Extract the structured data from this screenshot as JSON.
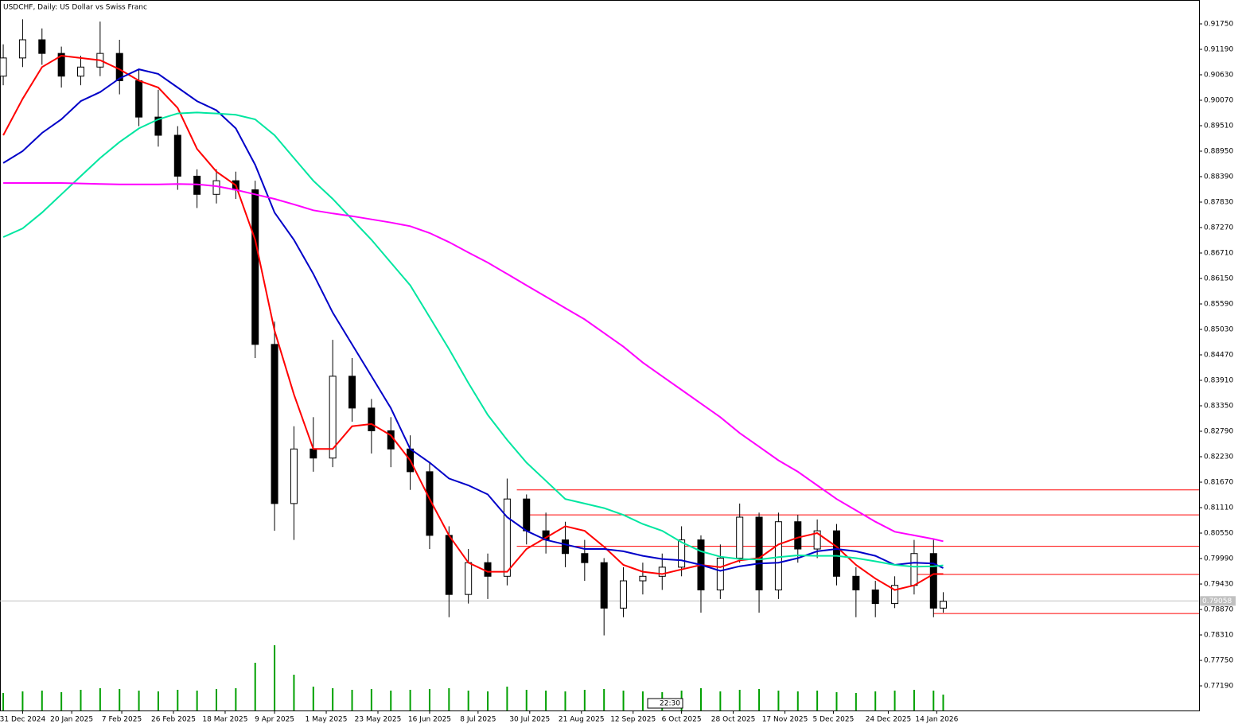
{
  "chart_data": {
    "type": "candlestick",
    "title": "USDCHF, Daily:  US Dollar vs Swiss Franc",
    "x": [
      0,
      6,
      12,
      18,
      24,
      30,
      36,
      42,
      48,
      54,
      60,
      66,
      72,
      78,
      84,
      90,
      96,
      102,
      108,
      114,
      120,
      126,
      132,
      138,
      144,
      150,
      156,
      162,
      168,
      174,
      180,
      186,
      192,
      198,
      204,
      210,
      216,
      222,
      228,
      234,
      240,
      246,
      252,
      258,
      264,
      270,
      276,
      282,
      288,
      291
    ],
    "open": [
      0.906,
      0.91,
      0.914,
      0.911,
      0.906,
      0.908,
      0.911,
      0.905,
      0.897,
      0.893,
      0.884,
      0.88,
      0.883,
      0.881,
      0.847,
      0.812,
      0.824,
      0.822,
      0.84,
      0.833,
      0.828,
      0.824,
      0.819,
      0.805,
      0.792,
      0.799,
      0.796,
      0.813,
      0.806,
      0.804,
      0.801,
      0.799,
      0.789,
      0.795,
      0.796,
      0.798,
      0.804,
      0.793,
      0.8,
      0.809,
      0.793,
      0.808,
      0.802,
      0.806,
      0.796,
      0.793,
      0.79,
      0.794,
      0.801,
      0.789
    ],
    "high": [
      0.913,
      0.9185,
      0.9165,
      0.9125,
      0.9105,
      0.918,
      0.914,
      0.9075,
      0.903,
      0.895,
      0.8855,
      0.8855,
      0.885,
      0.883,
      0.852,
      0.829,
      0.831,
      0.848,
      0.844,
      0.835,
      0.831,
      0.827,
      0.821,
      0.807,
      0.802,
      0.801,
      0.8175,
      0.814,
      0.81,
      0.808,
      0.804,
      0.8,
      0.798,
      0.799,
      0.801,
      0.807,
      0.805,
      0.803,
      0.812,
      0.81,
      0.81,
      0.8095,
      0.8085,
      0.8075,
      0.798,
      0.795,
      0.796,
      0.804,
      0.804,
      0.7925
    ],
    "low": [
      0.904,
      0.908,
      0.9085,
      0.9035,
      0.904,
      0.906,
      0.902,
      0.895,
      0.8905,
      0.881,
      0.877,
      0.878,
      0.879,
      0.844,
      0.806,
      0.804,
      0.819,
      0.82,
      0.83,
      0.823,
      0.82,
      0.815,
      0.802,
      0.787,
      0.79,
      0.791,
      0.794,
      0.803,
      0.801,
      0.798,
      0.795,
      0.783,
      0.787,
      0.792,
      0.793,
      0.796,
      0.788,
      0.791,
      0.799,
      0.788,
      0.791,
      0.799,
      0.8,
      0.794,
      0.787,
      0.787,
      0.789,
      0.792,
      0.787,
      0.788
    ],
    "close": [
      0.91,
      0.914,
      0.911,
      0.906,
      0.908,
      0.911,
      0.905,
      0.897,
      0.893,
      0.884,
      0.88,
      0.883,
      0.881,
      0.847,
      0.812,
      0.824,
      0.822,
      0.84,
      0.833,
      0.828,
      0.824,
      0.819,
      0.805,
      0.792,
      0.799,
      0.796,
      0.813,
      0.806,
      0.804,
      0.801,
      0.799,
      0.789,
      0.795,
      0.796,
      0.798,
      0.804,
      0.793,
      0.8,
      0.809,
      0.793,
      0.808,
      0.802,
      0.806,
      0.796,
      0.793,
      0.79,
      0.794,
      0.801,
      0.789,
      0.7905
    ],
    "volume": [
      22,
      24,
      25,
      23,
      26,
      28,
      27,
      25,
      24,
      26,
      25,
      27,
      28,
      60,
      82,
      45,
      30,
      28,
      26,
      27,
      25,
      26,
      27,
      28,
      25,
      24,
      30,
      26,
      25,
      24,
      26,
      27,
      25,
      24,
      23,
      25,
      28,
      24,
      26,
      27,
      25,
      24,
      25,
      23,
      22,
      24,
      25,
      26,
      25,
      20
    ],
    "volume_lim": [
      0,
      100
    ],
    "series": [
      {
        "color": "#ff0000",
        "values": [
          0.893,
          0.901,
          0.908,
          0.9105,
          0.91,
          0.9095,
          0.9075,
          0.905,
          0.9035,
          0.899,
          0.89,
          0.885,
          0.882,
          0.87,
          0.85,
          0.836,
          0.824,
          0.824,
          0.829,
          0.8295,
          0.827,
          0.8215,
          0.813,
          0.805,
          0.799,
          0.797,
          0.797,
          0.802,
          0.8045,
          0.807,
          0.806,
          0.8025,
          0.7985,
          0.797,
          0.7965,
          0.7975,
          0.7985,
          0.798,
          0.7995,
          0.8,
          0.803,
          0.8045,
          0.8055,
          0.8025,
          0.7985,
          0.7955,
          0.793,
          0.794,
          0.7965,
          0.7965
        ]
      },
      {
        "color": "#0000c8",
        "values": [
          0.8869,
          0.8895,
          0.8935,
          0.8965,
          0.9005,
          0.9025,
          0.9055,
          0.9075,
          0.9065,
          0.9035,
          0.9005,
          0.8985,
          0.8945,
          0.8865,
          0.876,
          0.87,
          0.8625,
          0.854,
          0.847,
          0.84,
          0.833,
          0.824,
          0.821,
          0.8175,
          0.816,
          0.814,
          0.809,
          0.806,
          0.804,
          0.803,
          0.802,
          0.802,
          0.8015,
          0.8005,
          0.7998,
          0.7995,
          0.7985,
          0.7972,
          0.7982,
          0.7988,
          0.799,
          0.8,
          0.8015,
          0.802,
          0.8015,
          0.8005,
          0.7985,
          0.799,
          0.7988,
          0.7978
        ]
      },
      {
        "color": "#00e6a0",
        "values": [
          0.8706,
          0.8725,
          0.876,
          0.88,
          0.884,
          0.888,
          0.8915,
          0.8945,
          0.8965,
          0.8978,
          0.898,
          0.8978,
          0.8975,
          0.8965,
          0.893,
          0.888,
          0.883,
          0.879,
          0.8745,
          0.87,
          0.865,
          0.86,
          0.853,
          0.846,
          0.8385,
          0.8315,
          0.826,
          0.821,
          0.817,
          0.813,
          0.812,
          0.811,
          0.8095,
          0.8075,
          0.806,
          0.8035,
          0.8015,
          0.8003,
          0.7998,
          0.7997,
          0.8002,
          0.8006,
          0.8005,
          0.8005,
          0.8,
          0.7993,
          0.7985,
          0.7981,
          0.7982,
          0.7984
        ]
      },
      {
        "color": "#ff00ff",
        "values": [
          0.8825,
          0.8825,
          0.8825,
          0.8825,
          0.8824,
          0.8823,
          0.8822,
          0.8822,
          0.8822,
          0.8823,
          0.8822,
          0.8818,
          0.881,
          0.88,
          0.879,
          0.8778,
          0.8765,
          0.8758,
          0.8752,
          0.8745,
          0.8738,
          0.873,
          0.8715,
          0.8695,
          0.8672,
          0.865,
          0.8625,
          0.86,
          0.8575,
          0.855,
          0.8525,
          0.8495,
          0.8465,
          0.843,
          0.84,
          0.837,
          0.834,
          0.831,
          0.8275,
          0.8245,
          0.8215,
          0.819,
          0.816,
          0.813,
          0.8105,
          0.808,
          0.8058,
          0.805,
          0.8042,
          0.8037
        ]
      }
    ],
    "levels": [
      {
        "value": 0.815,
        "from": 159
      },
      {
        "value": 0.8095,
        "from": 161.6
      },
      {
        "value": 0.8026,
        "from": 159
      },
      {
        "value": 0.7964,
        "from": 282
      },
      {
        "value": 0.7878,
        "from": 288
      }
    ],
    "level_color": "#ff0000",
    "last_price": 0.79058,
    "time_label": "22:30",
    "xlim": [
      -1,
      370.2
    ],
    "ylim": [
      0.76648,
      0.92275
    ],
    "yticks": [
      {
        "value": 0.9175,
        "label": "0.91750"
      },
      {
        "value": 0.9119,
        "label": "0.91190"
      },
      {
        "value": 0.9063,
        "label": "0.90630"
      },
      {
        "value": 0.9007,
        "label": "0.90070"
      },
      {
        "value": 0.8951,
        "label": "0.89510"
      },
      {
        "value": 0.8895,
        "label": "0.88950"
      },
      {
        "value": 0.8839,
        "label": "0.88390"
      },
      {
        "value": 0.8783,
        "label": "0.87830"
      },
      {
        "value": 0.8727,
        "label": "0.87270"
      },
      {
        "value": 0.8671,
        "label": "0.86710"
      },
      {
        "value": 0.8615,
        "label": "0.86150"
      },
      {
        "value": 0.8559,
        "label": "0.85590"
      },
      {
        "value": 0.8503,
        "label": "0.85030"
      },
      {
        "value": 0.8447,
        "label": "0.84470"
      },
      {
        "value": 0.8391,
        "label": "0.83910"
      },
      {
        "value": 0.8335,
        "label": "0.83350"
      },
      {
        "value": 0.8279,
        "label": "0.82790"
      },
      {
        "value": 0.8223,
        "label": "0.82230"
      },
      {
        "value": 0.8167,
        "label": "0.81670"
      },
      {
        "value": 0.8111,
        "label": "0.81110"
      },
      {
        "value": 0.8055,
        "label": "0.80550"
      },
      {
        "value": 0.7999,
        "label": "0.79990"
      },
      {
        "value": 0.7943,
        "label": "0.79430"
      },
      {
        "value": 0.7887,
        "label": "0.78870"
      },
      {
        "value": 0.7831,
        "label": "0.78310"
      },
      {
        "value": 0.7775,
        "label": "0.77750"
      },
      {
        "value": 0.7719,
        "label": "0.77190"
      }
    ],
    "xticks": [
      {
        "value": 6,
        "label": "31 Dec 2024"
      },
      {
        "value": 21.2,
        "label": "20 Jan 2025"
      },
      {
        "value": 36.7,
        "label": "7 Feb 2025"
      },
      {
        "value": 52.7,
        "label": "26 Feb 2025"
      },
      {
        "value": 68.7,
        "label": "18 Mar 2025"
      },
      {
        "value": 84,
        "label": "9 Apr 2025"
      },
      {
        "value": 100,
        "label": "1 May 2025"
      },
      {
        "value": 116,
        "label": "23 May 2025"
      },
      {
        "value": 132,
        "label": "16 Jun 2025"
      },
      {
        "value": 147,
        "label": "8 Jul 2025"
      },
      {
        "value": 163,
        "label": "30 Jul 2025"
      },
      {
        "value": 179,
        "label": "21 Aug 2025"
      },
      {
        "value": 195,
        "label": "12 Sep 2025"
      },
      {
        "value": 210,
        "label": "6 Oct 2025"
      },
      {
        "value": 226,
        "label": "28 Oct 2025"
      },
      {
        "value": 242,
        "label": "17 Nov 2025"
      },
      {
        "value": 257,
        "label": "5 Dec 2025"
      },
      {
        "value": 274,
        "label": "24 Dec 2025"
      },
      {
        "value": 289,
        "label": "14 Jan 2026"
      }
    ]
  }
}
